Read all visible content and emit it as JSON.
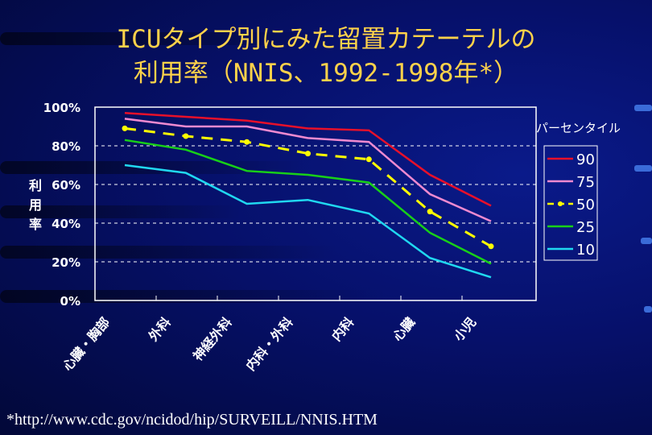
{
  "title_line1": "ICUタイプ別にみた留置カテーテルの",
  "title_line2": "利用率（NNIS、1992-1998年*）",
  "footer": "*http://www.cdc.gov/ncidod/hip/SURVEILL/NNIS.HTM",
  "chart_data": {
    "type": "line",
    "ylabel": "利用率",
    "ylim": [
      0,
      100
    ],
    "yticks": [
      "0%",
      "20%",
      "40%",
      "60%",
      "80%",
      "100%"
    ],
    "grid": "horizontal dashed",
    "legend_title": "パーセンタイル",
    "legend_position": "right",
    "categories": [
      "心臓・胸部",
      "外科",
      "神経外科",
      "内科・外科",
      "内科",
      "心臓",
      "小児"
    ],
    "series": [
      {
        "name": "90",
        "color": "#e8102a",
        "dashed": false,
        "values": [
          97,
          95,
          93,
          89,
          88,
          65,
          49
        ]
      },
      {
        "name": "75",
        "color": "#f08ad0",
        "dashed": false,
        "values": [
          94,
          90,
          90,
          84,
          82,
          55,
          41
        ]
      },
      {
        "name": "50",
        "color": "#ffff00",
        "dashed": true,
        "values": [
          89,
          85,
          82,
          76,
          73,
          46,
          28
        ]
      },
      {
        "name": "25",
        "color": "#18d018",
        "dashed": false,
        "values": [
          83,
          78,
          67,
          65,
          61,
          35,
          19
        ]
      },
      {
        "name": "10",
        "color": "#20d8f0",
        "dashed": false,
        "values": [
          70,
          66,
          50,
          52,
          45,
          22,
          12
        ]
      }
    ]
  }
}
